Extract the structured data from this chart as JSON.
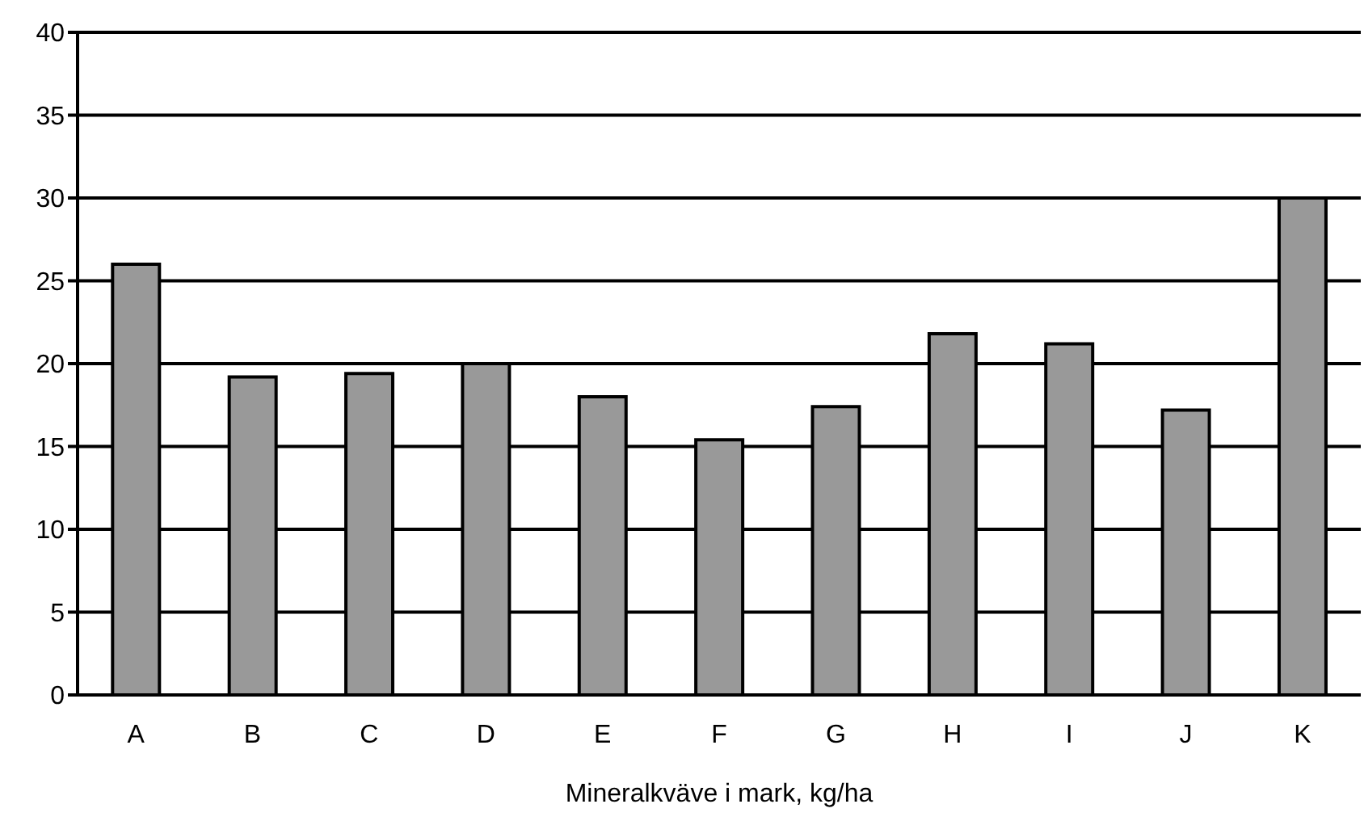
{
  "chart_data": {
    "type": "bar",
    "xlabel": "Mineralkväve i mark, kg/ha",
    "categories": [
      "A",
      "B",
      "C",
      "D",
      "E",
      "F",
      "G",
      "H",
      "I",
      "J",
      "K"
    ],
    "values": [
      26,
      19.2,
      19.4,
      20,
      18,
      15.4,
      17.4,
      21.8,
      21.2,
      17.2,
      30
    ],
    "color": "#999999",
    "ylim": [
      0,
      40
    ],
    "yticks": [
      0,
      5,
      10,
      15,
      20,
      25,
      30,
      35,
      40
    ],
    "grid": "y"
  }
}
